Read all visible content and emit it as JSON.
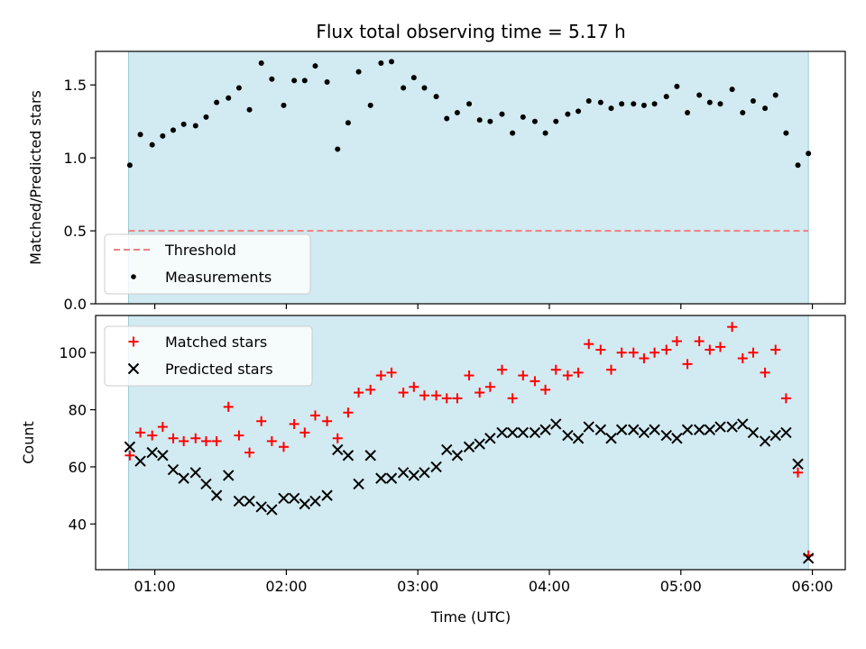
{
  "chart_data": {
    "title": "Flux total observing time = 5.17 h",
    "xlabel": "Time (UTC)",
    "x_tick_labels": [
      "01:00",
      "02:00",
      "03:00",
      "04:00",
      "05:00",
      "06:00"
    ],
    "x_tick_hours": [
      1,
      2,
      3,
      4,
      5,
      6
    ],
    "xlim_hours": [
      0.55,
      6.25
    ],
    "observing_window_hours": [
      0.8,
      5.97
    ],
    "shade_color": "#add8e6",
    "panels": [
      {
        "type": "scatter",
        "ylabel": "Matched/Predicted stars",
        "ylim": [
          0,
          1.73
        ],
        "y_ticks": [
          0.0,
          0.5,
          1.0,
          1.5
        ],
        "y_tick_labels": [
          "0.0",
          "0.5",
          "1.0",
          "1.5"
        ],
        "legend_position": "lower-left",
        "threshold": {
          "name": "Threshold",
          "value": 0.5,
          "color": "#f08080"
        },
        "series": [
          {
            "name": "Measurements",
            "color": "#000000",
            "marker": "dot",
            "x": [
              0.81,
              0.89,
              0.98,
              1.06,
              1.14,
              1.22,
              1.31,
              1.39,
              1.47,
              1.56,
              1.64,
              1.72,
              1.81,
              1.89,
              1.98,
              2.06,
              2.14,
              2.22,
              2.31,
              2.39,
              2.47,
              2.55,
              2.64,
              2.72,
              2.8,
              2.89,
              2.97,
              3.05,
              3.14,
              3.22,
              3.3,
              3.39,
              3.47,
              3.55,
              3.64,
              3.72,
              3.8,
              3.89,
              3.97,
              4.05,
              4.14,
              4.22,
              4.3,
              4.39,
              4.47,
              4.55,
              4.64,
              4.72,
              4.8,
              4.89,
              4.97,
              5.05,
              5.14,
              5.22,
              5.3,
              5.39,
              5.47,
              5.55,
              5.64,
              5.72,
              5.8,
              5.89,
              5.97
            ],
            "y": [
              0.95,
              1.16,
              1.09,
              1.15,
              1.19,
              1.23,
              1.22,
              1.28,
              1.38,
              1.41,
              1.48,
              1.33,
              1.65,
              1.54,
              1.36,
              1.53,
              1.53,
              1.63,
              1.52,
              1.06,
              1.24,
              1.59,
              1.36,
              1.65,
              1.66,
              1.48,
              1.55,
              1.48,
              1.42,
              1.27,
              1.31,
              1.37,
              1.26,
              1.25,
              1.3,
              1.17,
              1.28,
              1.25,
              1.17,
              1.25,
              1.3,
              1.32,
              1.39,
              1.38,
              1.34,
              1.37,
              1.37,
              1.36,
              1.37,
              1.42,
              1.49,
              1.31,
              1.43,
              1.38,
              1.37,
              1.47,
              1.31,
              1.39,
              1.34,
              1.43,
              1.17,
              0.95,
              1.03
            ]
          }
        ]
      },
      {
        "type": "scatter",
        "ylabel": "Count",
        "ylim": [
          24,
          113
        ],
        "y_ticks": [
          40,
          60,
          80,
          100
        ],
        "y_tick_labels": [
          "40",
          "60",
          "80",
          "100"
        ],
        "legend_position": "upper-left",
        "series": [
          {
            "name": "Matched stars",
            "color": "#ff0000",
            "marker": "plus",
            "x": [
              0.81,
              0.89,
              0.98,
              1.06,
              1.14,
              1.22,
              1.31,
              1.39,
              1.47,
              1.56,
              1.64,
              1.72,
              1.81,
              1.89,
              1.98,
              2.06,
              2.14,
              2.22,
              2.31,
              2.39,
              2.47,
              2.55,
              2.64,
              2.72,
              2.8,
              2.89,
              2.97,
              3.05,
              3.14,
              3.22,
              3.3,
              3.39,
              3.47,
              3.55,
              3.64,
              3.72,
              3.8,
              3.89,
              3.97,
              4.05,
              4.14,
              4.22,
              4.3,
              4.39,
              4.47,
              4.55,
              4.64,
              4.72,
              4.8,
              4.89,
              4.97,
              5.05,
              5.14,
              5.22,
              5.3,
              5.39,
              5.47,
              5.55,
              5.64,
              5.72,
              5.8,
              5.89,
              5.97
            ],
            "y": [
              64,
              72,
              71,
              74,
              70,
              69,
              70,
              69,
              69,
              81,
              71,
              65,
              76,
              69,
              67,
              75,
              72,
              78,
              76,
              70,
              79,
              86,
              87,
              92,
              93,
              86,
              88,
              85,
              85,
              84,
              84,
              92,
              86,
              88,
              94,
              84,
              92,
              90,
              87,
              94,
              92,
              93,
              103,
              101,
              94,
              100,
              100,
              98,
              100,
              101,
              104,
              96,
              104,
              101,
              102,
              109,
              98,
              100,
              93,
              101,
              84,
              58,
              29
            ]
          },
          {
            "name": "Predicted stars",
            "color": "#000000",
            "marker": "x",
            "x": [
              0.81,
              0.89,
              0.98,
              1.06,
              1.14,
              1.22,
              1.31,
              1.39,
              1.47,
              1.56,
              1.64,
              1.72,
              1.81,
              1.89,
              1.98,
              2.06,
              2.14,
              2.22,
              2.31,
              2.39,
              2.47,
              2.55,
              2.64,
              2.72,
              2.8,
              2.89,
              2.97,
              3.05,
              3.14,
              3.22,
              3.3,
              3.39,
              3.47,
              3.55,
              3.64,
              3.72,
              3.8,
              3.89,
              3.97,
              4.05,
              4.14,
              4.22,
              4.3,
              4.39,
              4.47,
              4.55,
              4.64,
              4.72,
              4.8,
              4.89,
              4.97,
              5.05,
              5.14,
              5.22,
              5.3,
              5.39,
              5.47,
              5.55,
              5.64,
              5.72,
              5.8,
              5.89,
              5.97
            ],
            "y": [
              67,
              62,
              65,
              64,
              59,
              56,
              58,
              54,
              50,
              57,
              48,
              48,
              46,
              45,
              49,
              49,
              47,
              48,
              50,
              66,
              64,
              54,
              64,
              56,
              56,
              58,
              57,
              58,
              60,
              66,
              64,
              67,
              68,
              70,
              72,
              72,
              72,
              72,
              73,
              75,
              71,
              70,
              74,
              73,
              70,
              73,
              73,
              72,
              73,
              71,
              70,
              73,
              73,
              73,
              74,
              74,
              75,
              72,
              69,
              71,
              72,
              61,
              28
            ]
          }
        ]
      }
    ]
  }
}
